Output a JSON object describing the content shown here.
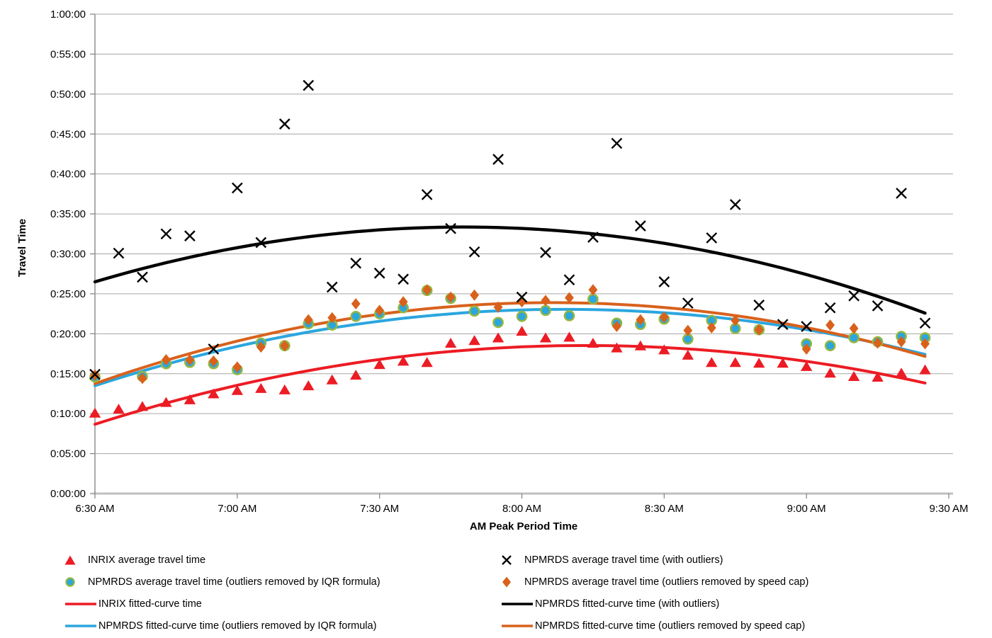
{
  "page_background": "#FFFFFF",
  "colors": {
    "inrix_red": "#EC1C24",
    "npmrds_black": "#000000",
    "npmrds_iqr_blue": "#2BA6DE",
    "npmrds_iqr_ring_green": "#95B73F",
    "npmrds_cap_orange": "#D9611C",
    "gridline": "#A6A6A6",
    "x_axis_line": "#BFBFBF",
    "axis_dark": "#808080",
    "text": "#000000"
  },
  "chart_data": {
    "type": "scatter",
    "title": "",
    "x_axis": {
      "title": "AM Peak Period Time",
      "tick_labels": [
        "6:30 AM",
        "7:00 AM",
        "7:30 AM",
        "8:00 AM",
        "8:30 AM",
        "9:00 AM",
        "9:30 AM"
      ],
      "range_minutes_from_630am": [
        0,
        180
      ],
      "tick_interval_minutes": 30,
      "vertical_gridlines": false
    },
    "y_axis": {
      "title": "Travel Time",
      "tick_labels": [
        "0:00:00",
        "0:05:00",
        "0:10:00",
        "0:15:00",
        "0:20:00",
        "0:25:00",
        "0:30:00",
        "0:35:00",
        "0:40:00",
        "0:45:00",
        "0:50:00",
        "0:55:00",
        "1:00:00"
      ],
      "range": [
        "0:00:00",
        "1:00:00"
      ],
      "tick_interval": "0:05:00",
      "horizontal_gridlines": true
    },
    "point_interval_minutes": 5,
    "point_times": [
      "6:30 AM",
      "6:35 AM",
      "6:40 AM",
      "6:45 AM",
      "6:50 AM",
      "6:55 AM",
      "7:00 AM",
      "7:05 AM",
      "7:10 AM",
      "7:15 AM",
      "7:20 AM",
      "7:25 AM",
      "7:30 AM",
      "7:35 AM",
      "7:40 AM",
      "7:45 AM",
      "7:50 AM",
      "7:55 AM",
      "8:00 AM",
      "8:05 AM",
      "8:10 AM",
      "8:15 AM",
      "8:20 AM",
      "8:25 AM",
      "8:30 AM",
      "8:35 AM",
      "8:40 AM",
      "8:45 AM",
      "8:50 AM",
      "8:55 AM",
      "9:00 AM",
      "9:05 AM",
      "9:10 AM",
      "9:15 AM",
      "9:20 AM",
      "9:25 AM"
    ],
    "series": [
      {
        "name": "INRIX average travel time",
        "kind": "scatter",
        "marker": "triangle",
        "color": "#EC1C24",
        "values": [
          "0:10:05",
          "0:10:35",
          "0:10:55",
          "0:11:25",
          "0:11:45",
          "0:12:30",
          "0:12:55",
          "0:13:10",
          "0:13:00",
          "0:13:30",
          "0:14:15",
          "0:14:50",
          "0:16:10",
          "0:16:35",
          "0:16:25",
          "0:18:50",
          "0:19:10",
          "0:19:30",
          "0:20:20",
          "0:19:30",
          "0:19:35",
          "0:18:50",
          "0:18:15",
          "0:18:30",
          "0:18:00",
          "0:17:20",
          "0:16:25",
          "0:16:25",
          "0:16:20",
          "0:16:20",
          "0:15:55",
          "0:15:05",
          "0:14:40",
          "0:14:35",
          "0:15:05",
          "0:15:30"
        ]
      },
      {
        "name": "NPMRDS average travel time (with outliers)",
        "kind": "scatter",
        "marker": "x",
        "color": "#000000",
        "values": [
          "0:14:55",
          "0:30:05",
          "0:27:05",
          "0:32:30",
          "0:32:15",
          "0:18:05",
          "0:38:15",
          "0:31:25",
          "0:46:15",
          "0:51:05",
          "0:25:50",
          "0:28:50",
          "0:27:35",
          "0:26:50",
          "0:37:25",
          "0:33:10",
          "0:30:15",
          "0:41:50",
          "0:24:35",
          "0:30:10",
          "0:26:45",
          "0:32:05",
          "0:43:50",
          "0:33:30",
          "0:26:30",
          "0:23:50",
          "0:32:00",
          "0:36:10",
          "0:23:35",
          "0:21:10",
          "0:20:55",
          "0:23:15",
          "0:24:45",
          "0:23:30",
          "0:37:35",
          "0:21:20"
        ]
      },
      {
        "name": "NPMRDS average travel time (outliers removed by IQR formula)",
        "kind": "scatter",
        "marker": "circle",
        "color": "#2BA6DE",
        "ring_color": "#95B73F",
        "values": [
          "0:14:35",
          null,
          "0:14:40",
          "0:16:15",
          "0:16:25",
          "0:16:15",
          "0:15:30",
          "0:18:50",
          "0:18:30",
          "0:21:15",
          "0:21:05",
          "0:22:10",
          "0:22:30",
          "0:23:15",
          "0:25:25",
          "0:24:25",
          "0:22:50",
          "0:21:25",
          "0:22:10",
          "0:22:55",
          "0:22:15",
          "0:24:20",
          "0:21:20",
          "0:21:10",
          "0:21:50",
          "0:19:20",
          "0:21:40",
          "0:20:40",
          "0:20:30",
          null,
          "0:18:45",
          "0:18:30",
          "0:19:30",
          "0:19:00",
          "0:19:40",
          "0:19:30"
        ]
      },
      {
        "name": "NPMRDS average travel time (outliers removed by speed cap)",
        "kind": "scatter",
        "marker": "diamond",
        "color": "#D9611C",
        "values": [
          "0:14:50",
          null,
          "0:14:25",
          "0:16:45",
          "0:16:45",
          "0:16:35",
          "0:15:50",
          "0:18:20",
          "0:18:30",
          "0:21:45",
          "0:22:00",
          "0:23:45",
          "0:22:55",
          "0:24:00",
          "0:25:30",
          "0:24:35",
          "0:24:50",
          "0:23:20",
          "0:24:00",
          "0:24:10",
          "0:24:30",
          "0:25:30",
          "0:20:55",
          "0:21:45",
          "0:22:05",
          "0:20:25",
          "0:20:45",
          "0:21:40",
          "0:20:30",
          null,
          "0:18:05",
          "0:21:05",
          "0:20:40",
          "0:18:50",
          "0:19:00",
          "0:18:45"
        ]
      },
      {
        "name": "INRIX fitted-curve time",
        "kind": "curve",
        "color": "#EC1C24",
        "anchors": {
          "t_minutes": [
            0,
            98,
            175
          ],
          "values": [
            "0:08:40",
            "0:18:30",
            "0:13:50"
          ]
        }
      },
      {
        "name": "NPMRDS fitted-curve time (with outliers)",
        "kind": "curve",
        "color": "#000000",
        "anchors": {
          "t_minutes": [
            0,
            82,
            175
          ],
          "values": [
            "0:26:30",
            "0:33:20",
            "0:22:35"
          ]
        }
      },
      {
        "name": "NPMRDS fitted-curve time (outliers removed by IQR formula)",
        "kind": "curve",
        "color": "#2BA6DE",
        "anchors": {
          "t_minutes": [
            0,
            87,
            175
          ],
          "values": [
            "0:13:30",
            "0:22:55",
            "0:17:25"
          ]
        }
      },
      {
        "name": "NPMRDS fitted-curve time (outliers removed by speed cap)",
        "kind": "curve",
        "color": "#D9611C",
        "anchors": {
          "t_minutes": [
            0,
            85,
            175
          ],
          "values": [
            "0:13:45",
            "0:23:45",
            "0:17:10"
          ]
        }
      }
    ],
    "legend_position": "bottom"
  },
  "legend": {
    "items": [
      {
        "label": "INRIX average travel time",
        "marker": "triangle"
      },
      {
        "label": "NPMRDS average travel time (with outliers)",
        "marker": "x"
      },
      {
        "label": "NPMRDS average travel time (outliers removed by IQR formula)",
        "marker": "circle"
      },
      {
        "label": "NPMRDS average travel time (outliers removed by speed cap)",
        "marker": "diamond"
      },
      {
        "label": "INRIX fitted-curve time",
        "marker": "red-line"
      },
      {
        "label": "NPMRDS fitted-curve time (with outliers)",
        "marker": "black-line"
      },
      {
        "label": "NPMRDS fitted-curve time (outliers removed by IQR formula)",
        "marker": "blue-line"
      },
      {
        "label": "NPMRDS fitted-curve time (outliers removed by speed cap)",
        "marker": "orange-line"
      }
    ]
  }
}
